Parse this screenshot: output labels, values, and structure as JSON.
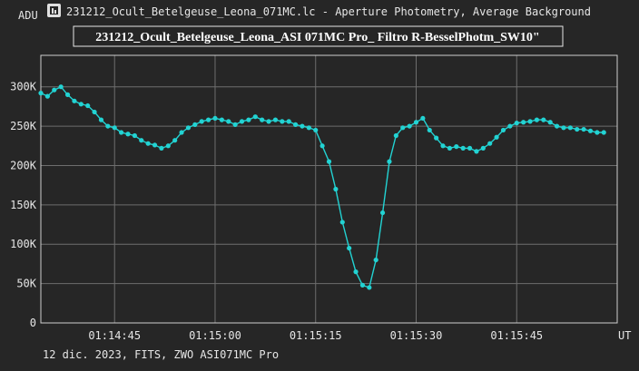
{
  "window": {
    "title": "231212_Ocult_Betelgeuse_Leona_071MC.lc - Aperture Photometry, Average Background",
    "icon": "chart-app-icon"
  },
  "footer": {
    "caption": "12 dic. 2023, FITS, ZWO ASI071MC Pro"
  },
  "colors": {
    "background": "#262626",
    "plot_frame": "#cfcfcf",
    "grid": "#6e6e6e",
    "series": "#22d3d3",
    "text": "#e6e6e6"
  },
  "chart_data": {
    "type": "line",
    "title": "231212_Ocult_Betelgeuse_Leona_ASI 071MC Pro_ Filtro R-BesselPhotm_SW10\"",
    "ylabel": "ADU",
    "x_unit_label": "UT",
    "xlabel": "",
    "grid": true,
    "markers": true,
    "ylim": [
      0,
      340000
    ],
    "y_ticks": [
      0,
      50000,
      100000,
      150000,
      200000,
      250000,
      300000
    ],
    "y_tick_labels": [
      "0",
      "50K",
      "100K",
      "150K",
      "200K",
      "250K",
      "300K"
    ],
    "x_range": [
      "01:14:34",
      "01:16:00"
    ],
    "x_ticks": [
      "01:14:45",
      "01:15:00",
      "01:15:15",
      "01:15:30",
      "01:15:45"
    ],
    "x_tick_labels": [
      "01:14:45",
      "01:15:00",
      "01:15:15",
      "01:15:30",
      "01:15:45"
    ],
    "series": [
      {
        "name": "",
        "points": [
          [
            "01:14:34",
            292000
          ],
          [
            "01:14:35",
            288000
          ],
          [
            "01:14:36",
            296000
          ],
          [
            "01:14:37",
            300000
          ],
          [
            "01:14:38",
            290000
          ],
          [
            "01:14:39",
            282000
          ],
          [
            "01:14:40",
            278000
          ],
          [
            "01:14:41",
            276000
          ],
          [
            "01:14:42",
            268000
          ],
          [
            "01:14:43",
            258000
          ],
          [
            "01:14:44",
            250000
          ],
          [
            "01:14:45",
            248000
          ],
          [
            "01:14:46",
            242000
          ],
          [
            "01:14:47",
            240000
          ],
          [
            "01:14:48",
            238000
          ],
          [
            "01:14:49",
            232000
          ],
          [
            "01:14:50",
            228000
          ],
          [
            "01:14:51",
            226000
          ],
          [
            "01:14:52",
            222000
          ],
          [
            "01:14:53",
            225000
          ],
          [
            "01:14:54",
            232000
          ],
          [
            "01:14:55",
            242000
          ],
          [
            "01:14:56",
            248000
          ],
          [
            "01:14:57",
            252000
          ],
          [
            "01:14:58",
            256000
          ],
          [
            "01:14:59",
            258000
          ],
          [
            "01:15:00",
            260000
          ],
          [
            "01:15:01",
            258000
          ],
          [
            "01:15:02",
            256000
          ],
          [
            "01:15:03",
            252000
          ],
          [
            "01:15:04",
            256000
          ],
          [
            "01:15:05",
            258000
          ],
          [
            "01:15:06",
            262000
          ],
          [
            "01:15:07",
            258000
          ],
          [
            "01:15:08",
            256000
          ],
          [
            "01:15:09",
            258000
          ],
          [
            "01:15:10",
            256000
          ],
          [
            "01:15:11",
            256000
          ],
          [
            "01:15:12",
            252000
          ],
          [
            "01:15:13",
            250000
          ],
          [
            "01:15:14",
            248000
          ],
          [
            "01:15:15",
            245000
          ],
          [
            "01:15:16",
            225000
          ],
          [
            "01:15:17",
            205000
          ],
          [
            "01:15:18",
            170000
          ],
          [
            "01:15:19",
            128000
          ],
          [
            "01:15:20",
            95000
          ],
          [
            "01:15:21",
            65000
          ],
          [
            "01:15:22",
            48000
          ],
          [
            "01:15:23",
            45000
          ],
          [
            "01:15:24",
            80000
          ],
          [
            "01:15:25",
            140000
          ],
          [
            "01:15:26",
            205000
          ],
          [
            "01:15:27",
            238000
          ],
          [
            "01:15:28",
            248000
          ],
          [
            "01:15:29",
            250000
          ],
          [
            "01:15:30",
            255000
          ],
          [
            "01:15:31",
            260000
          ],
          [
            "01:15:32",
            245000
          ],
          [
            "01:15:33",
            235000
          ],
          [
            "01:15:34",
            225000
          ],
          [
            "01:15:35",
            222000
          ],
          [
            "01:15:36",
            224000
          ],
          [
            "01:15:37",
            222000
          ],
          [
            "01:15:38",
            222000
          ],
          [
            "01:15:39",
            218000
          ],
          [
            "01:15:40",
            222000
          ],
          [
            "01:15:41",
            228000
          ],
          [
            "01:15:42",
            236000
          ],
          [
            "01:15:43",
            245000
          ],
          [
            "01:15:44",
            250000
          ],
          [
            "01:15:45",
            254000
          ],
          [
            "01:15:46",
            255000
          ],
          [
            "01:15:47",
            256000
          ],
          [
            "01:15:48",
            258000
          ],
          [
            "01:15:49",
            258000
          ],
          [
            "01:15:50",
            255000
          ],
          [
            "01:15:51",
            250000
          ],
          [
            "01:15:52",
            248000
          ],
          [
            "01:15:53",
            248000
          ],
          [
            "01:15:54",
            246000
          ],
          [
            "01:15:55",
            246000
          ],
          [
            "01:15:56",
            244000
          ],
          [
            "01:15:57",
            242000
          ],
          [
            "01:15:58",
            242000
          ]
        ]
      }
    ]
  }
}
